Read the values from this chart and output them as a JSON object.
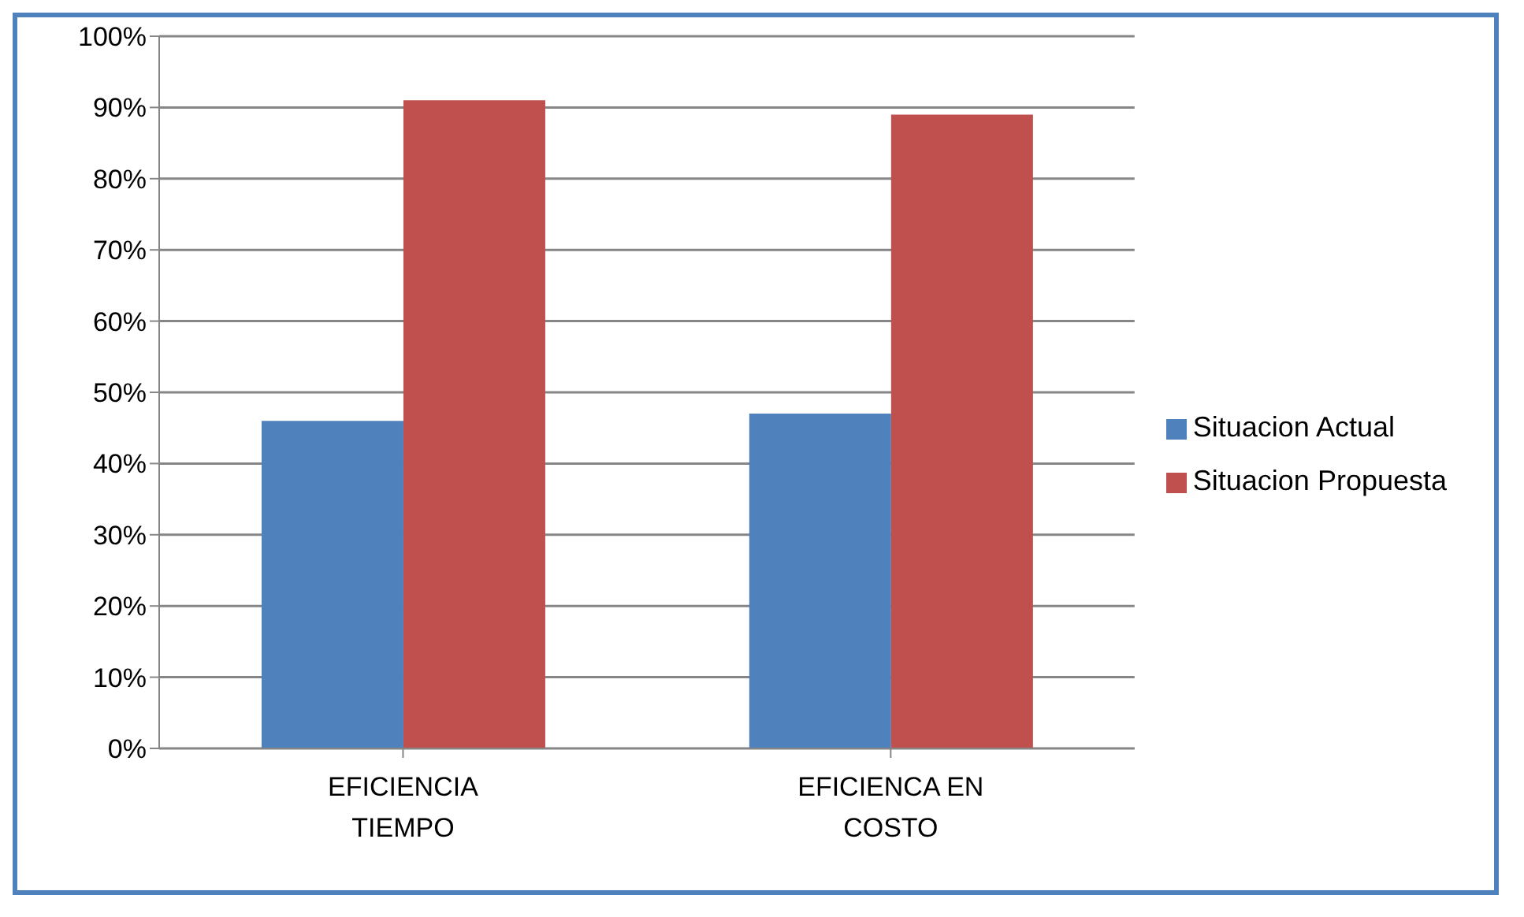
{
  "chart_data": {
    "type": "bar",
    "categories": [
      "EFICIENCIA TIEMPO",
      "EFICIENCA EN COSTO"
    ],
    "series": [
      {
        "name": "Situacion Actual",
        "color": "#4f81bd",
        "values": [
          46,
          47
        ]
      },
      {
        "name": "Situacion Propuesta",
        "color": "#c0504d",
        "values": [
          91,
          89
        ]
      }
    ],
    "ylim": [
      0,
      100
    ],
    "yticks": [
      {
        "value": 0,
        "label": "0%"
      },
      {
        "value": 10,
        "label": "10%"
      },
      {
        "value": 20,
        "label": "20%"
      },
      {
        "value": 30,
        "label": "30%"
      },
      {
        "value": 40,
        "label": "40%"
      },
      {
        "value": 50,
        "label": "50%"
      },
      {
        "value": 60,
        "label": "60%"
      },
      {
        "value": 70,
        "label": "70%"
      },
      {
        "value": 80,
        "label": "80%"
      },
      {
        "value": 90,
        "label": "90%"
      },
      {
        "value": 100,
        "label": "100%"
      }
    ],
    "grid": "y",
    "legend": "right"
  }
}
